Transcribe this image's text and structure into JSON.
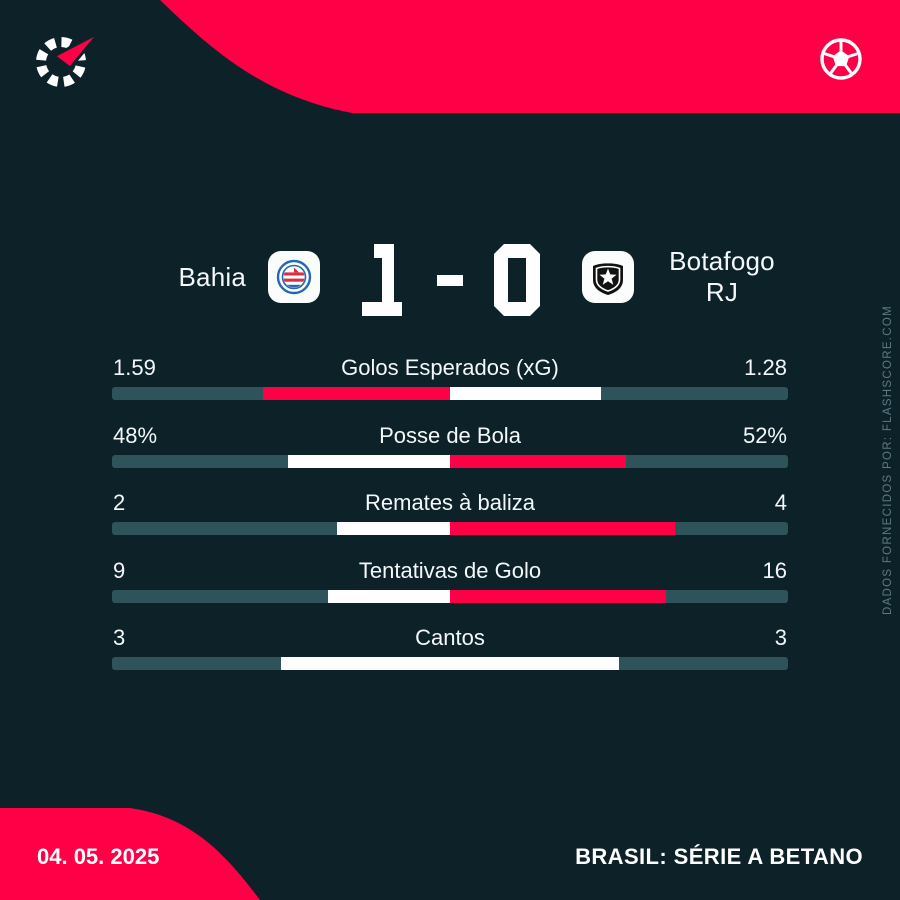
{
  "colors": {
    "background": "#0d2129",
    "accent": "#ff0046",
    "bar_track": "#2e535b",
    "bar_fill_neutral": "#ffffff",
    "muted_text": "#5d7a83",
    "badge_bg": "#fbfcfc",
    "bahia_blue": "#2368b5",
    "bahia_red": "#d9303f"
  },
  "header": {
    "brand_icon": "flashscore-logo",
    "sport_icon": "soccer-ball"
  },
  "match": {
    "home_team": "Bahia",
    "away_team_line1": "Botafogo",
    "away_team_line2": "RJ",
    "score_home": "1",
    "score_separator": "-",
    "score_away": "0"
  },
  "stats": {
    "rows": [
      {
        "label": "Golos Esperados (xG)",
        "home_display": "1.59",
        "away_display": "1.28",
        "home": 1.59,
        "away": 1.28
      },
      {
        "label": "Posse de Bola",
        "home_display": "48%",
        "away_display": "52%",
        "home": 48,
        "away": 52
      },
      {
        "label": "Remates à baliza",
        "home_display": "2",
        "away_display": "4",
        "home": 2,
        "away": 4
      },
      {
        "label": "Tentativas de Golo",
        "home_display": "9",
        "away_display": "16",
        "home": 9,
        "away": 16
      },
      {
        "label": "Cantos",
        "home_display": "3",
        "away_display": "3",
        "home": 3,
        "away": 3
      }
    ]
  },
  "side_note": "DADOS FORNECIDOS POR: FLASHSCORE.COM",
  "footer": {
    "date": "04. 05. 2025",
    "competition": "BRASIL: SÉRIE A BETANO"
  },
  "chart_data": {
    "type": "bar",
    "title": "Bahia 1-0 Botafogo RJ — match statistics",
    "categories": [
      "Golos Esperados (xG)",
      "Posse de Bola",
      "Remates à baliza",
      "Tentativas de Golo",
      "Cantos"
    ],
    "series": [
      {
        "name": "Bahia",
        "values": [
          1.59,
          48,
          2,
          9,
          3
        ]
      },
      {
        "name": "Botafogo RJ",
        "values": [
          1.28,
          52,
          4,
          16,
          3
        ]
      }
    ],
    "orientation": "horizontal-diverging-from-center",
    "highlight_rule": "leading value shown in accent pink, other in white; ties both white",
    "legend_position": "none",
    "grid": false
  }
}
